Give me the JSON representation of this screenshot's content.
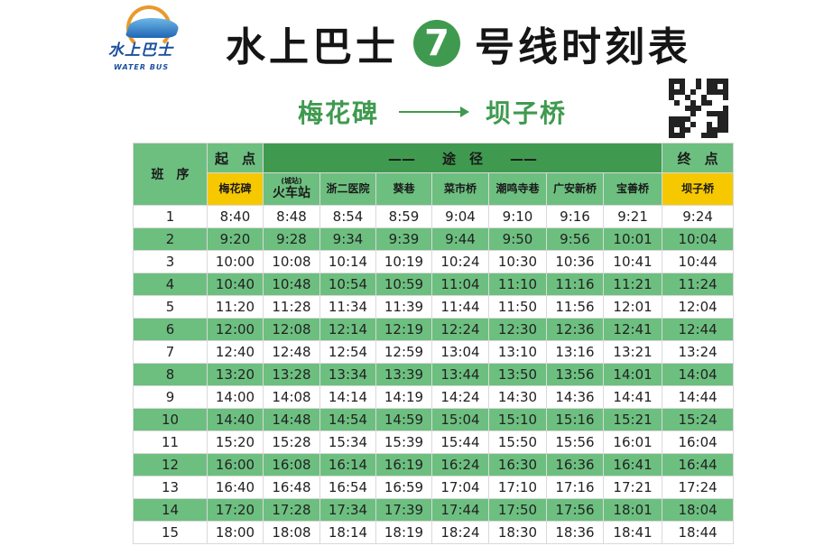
{
  "logo": {
    "cn": "水上巴士",
    "en": "WATER BUS"
  },
  "title": {
    "prefix": "水上巴士",
    "line_number": "7",
    "suffix": "号线时刻表"
  },
  "route": {
    "from": "梅花碑",
    "to": "坝子桥"
  },
  "colors": {
    "green_light": "#6dbf80",
    "green_dark": "#3f9a4f",
    "yellow": "#f6c800"
  },
  "table": {
    "col_seq": "班　序",
    "start_label": "起　点",
    "via_label": "——　　途　径　　——",
    "end_label": "终　点",
    "stations": [
      {
        "name": "梅花碑"
      },
      {
        "note": "(城站)",
        "name": "火车站"
      },
      {
        "name": "浙二医院"
      },
      {
        "name": "葵巷"
      },
      {
        "name": "菜市桥"
      },
      {
        "name": "潮鸣寺巷"
      },
      {
        "name": "广安新桥"
      },
      {
        "name": "宝善桥"
      },
      {
        "name": "坝子桥"
      }
    ],
    "rows": [
      [
        "1",
        "8:40",
        "8:48",
        "8:54",
        "8:59",
        "9:04",
        "9:10",
        "9:16",
        "9:21",
        "9:24"
      ],
      [
        "2",
        "9:20",
        "9:28",
        "9:34",
        "9:39",
        "9:44",
        "9:50",
        "9:56",
        "10:01",
        "10:04"
      ],
      [
        "3",
        "10:00",
        "10:08",
        "10:14",
        "10:19",
        "10:24",
        "10:30",
        "10:36",
        "10:41",
        "10:44"
      ],
      [
        "4",
        "10:40",
        "10:48",
        "10:54",
        "10:59",
        "11:04",
        "11:10",
        "11:16",
        "11:21",
        "11:24"
      ],
      [
        "5",
        "11:20",
        "11:28",
        "11:34",
        "11:39",
        "11:44",
        "11:50",
        "11:56",
        "12:01",
        "12:04"
      ],
      [
        "6",
        "12:00",
        "12:08",
        "12:14",
        "12:19",
        "12:24",
        "12:30",
        "12:36",
        "12:41",
        "12:44"
      ],
      [
        "7",
        "12:40",
        "12:48",
        "12:54",
        "12:59",
        "13:04",
        "13:10",
        "13:16",
        "13:21",
        "13:24"
      ],
      [
        "8",
        "13:20",
        "13:28",
        "13:34",
        "13:39",
        "13:44",
        "13:50",
        "13:56",
        "14:01",
        "14:04"
      ],
      [
        "9",
        "14:00",
        "14:08",
        "14:14",
        "14:19",
        "14:24",
        "14:30",
        "14:36",
        "14:41",
        "14:44"
      ],
      [
        "10",
        "14:40",
        "14:48",
        "14:54",
        "14:59",
        "15:04",
        "15:10",
        "15:16",
        "15:21",
        "15:24"
      ],
      [
        "11",
        "15:20",
        "15:28",
        "15:34",
        "15:39",
        "15:44",
        "15:50",
        "15:56",
        "16:01",
        "16:04"
      ],
      [
        "12",
        "16:00",
        "16:08",
        "16:14",
        "16:19",
        "16:24",
        "16:30",
        "16:36",
        "16:41",
        "16:44"
      ],
      [
        "13",
        "16:40",
        "16:48",
        "16:54",
        "16:59",
        "17:04",
        "17:10",
        "17:16",
        "17:21",
        "17:24"
      ],
      [
        "14",
        "17:20",
        "17:28",
        "17:34",
        "17:39",
        "17:44",
        "17:50",
        "17:56",
        "18:01",
        "18:04"
      ],
      [
        "15",
        "18:00",
        "18:08",
        "18:14",
        "18:19",
        "18:24",
        "18:30",
        "18:36",
        "18:41",
        "18:44"
      ]
    ]
  }
}
